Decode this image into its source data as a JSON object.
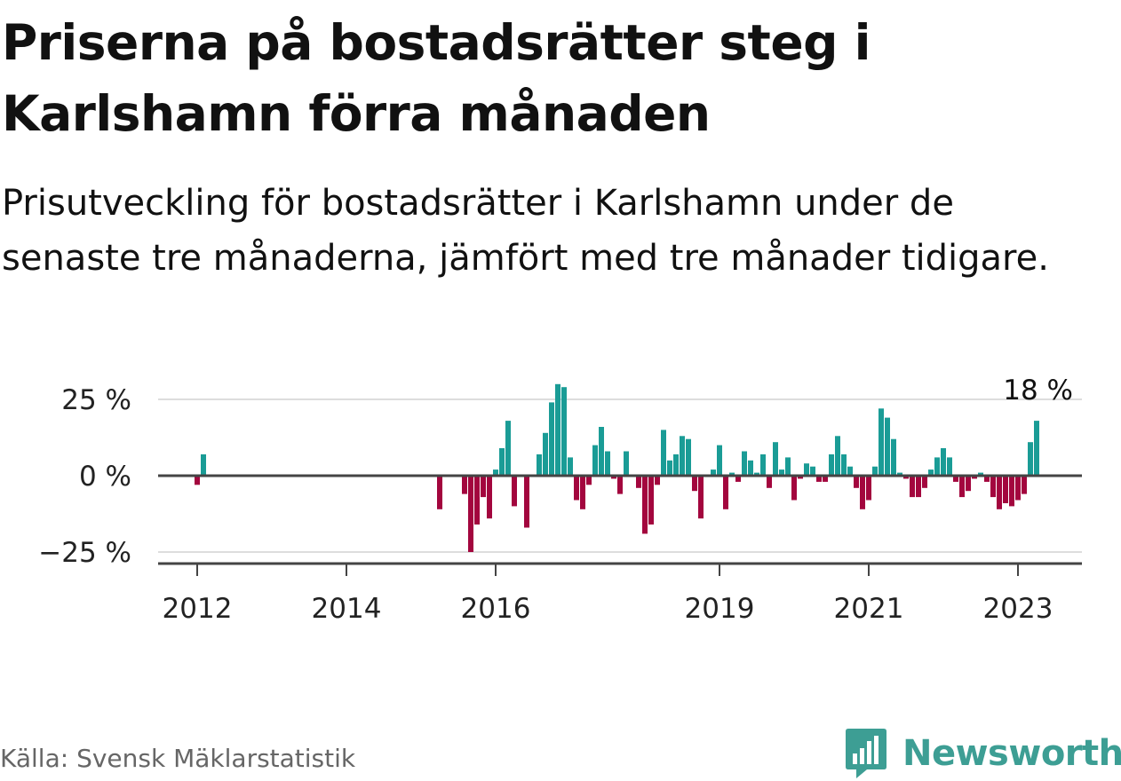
{
  "header": {
    "title": "Priserna på bostadsrätter steg i Karlshamn förra månaden",
    "subtitle": "Prisutveckling för bostadsrätter i Karlshamn under de senaste tre månaderna, jämfört med tre månader tidigare."
  },
  "footer": {
    "source": "Källa: Svensk Mäklarstatistik",
    "brand": "Newsworthy",
    "brand_icon": "bar-chart-logo-icon"
  },
  "colors": {
    "positive": "#1a9c96",
    "negative": "#a3063e",
    "axis": "#444444",
    "grid": "#dddddd",
    "brand": "#3d9e94"
  },
  "chart_data": {
    "type": "bar",
    "title": "Priserna på bostadsrätter steg i Karlshamn förra månaden",
    "ylabel": "",
    "xlabel": "",
    "ylim": [
      -28,
      30
    ],
    "y_ticks": [
      {
        "value": 25,
        "label": "25 %"
      },
      {
        "value": 0,
        "label": "0 %"
      },
      {
        "value": -25,
        "label": "−25 %"
      }
    ],
    "x_ticks": [
      {
        "date": "2012-01",
        "label": "2012"
      },
      {
        "date": "2014-01",
        "label": "2014"
      },
      {
        "date": "2016-01",
        "label": "2016"
      },
      {
        "date": "2019-01",
        "label": "2019"
      },
      {
        "date": "2021-01",
        "label": "2021"
      },
      {
        "date": "2023-01",
        "label": "2023"
      }
    ],
    "x_range": [
      "2011-08",
      "2024-01"
    ],
    "grid": true,
    "annotation": {
      "date": "2023-04",
      "value": 18,
      "label": "18 %"
    },
    "series": [
      {
        "values": [
          {
            "x": "2012-01",
            "y": -3
          },
          {
            "x": "2012-02",
            "y": 7
          },
          {
            "x": "2015-04",
            "y": -11
          },
          {
            "x": "2015-08",
            "y": -6
          },
          {
            "x": "2015-09",
            "y": -25
          },
          {
            "x": "2015-10",
            "y": -16
          },
          {
            "x": "2015-11",
            "y": -7
          },
          {
            "x": "2015-12",
            "y": -14
          },
          {
            "x": "2016-01",
            "y": 2
          },
          {
            "x": "2016-02",
            "y": 9
          },
          {
            "x": "2016-03",
            "y": 18
          },
          {
            "x": "2016-04",
            "y": -10
          },
          {
            "x": "2016-06",
            "y": -17
          },
          {
            "x": "2016-08",
            "y": 7
          },
          {
            "x": "2016-09",
            "y": 14
          },
          {
            "x": "2016-10",
            "y": 24
          },
          {
            "x": "2016-11",
            "y": 30
          },
          {
            "x": "2016-12",
            "y": 29
          },
          {
            "x": "2017-01",
            "y": 6
          },
          {
            "x": "2017-02",
            "y": -8
          },
          {
            "x": "2017-03",
            "y": -11
          },
          {
            "x": "2017-04",
            "y": -3
          },
          {
            "x": "2017-05",
            "y": 10
          },
          {
            "x": "2017-06",
            "y": 16
          },
          {
            "x": "2017-07",
            "y": 8
          },
          {
            "x": "2017-08",
            "y": -1
          },
          {
            "x": "2017-09",
            "y": -6
          },
          {
            "x": "2017-10",
            "y": 8
          },
          {
            "x": "2017-12",
            "y": -4
          },
          {
            "x": "2018-01",
            "y": -19
          },
          {
            "x": "2018-02",
            "y": -16
          },
          {
            "x": "2018-03",
            "y": -3
          },
          {
            "x": "2018-04",
            "y": 15
          },
          {
            "x": "2018-05",
            "y": 5
          },
          {
            "x": "2018-06",
            "y": 7
          },
          {
            "x": "2018-07",
            "y": 13
          },
          {
            "x": "2018-08",
            "y": 12
          },
          {
            "x": "2018-09",
            "y": -5
          },
          {
            "x": "2018-10",
            "y": -14
          },
          {
            "x": "2018-12",
            "y": 2
          },
          {
            "x": "2019-01",
            "y": 10
          },
          {
            "x": "2019-02",
            "y": -11
          },
          {
            "x": "2019-03",
            "y": 1
          },
          {
            "x": "2019-04",
            "y": -2
          },
          {
            "x": "2019-05",
            "y": 8
          },
          {
            "x": "2019-06",
            "y": 5
          },
          {
            "x": "2019-07",
            "y": 1
          },
          {
            "x": "2019-08",
            "y": 7
          },
          {
            "x": "2019-09",
            "y": -4
          },
          {
            "x": "2019-10",
            "y": 11
          },
          {
            "x": "2019-11",
            "y": 2
          },
          {
            "x": "2019-12",
            "y": 6
          },
          {
            "x": "2020-01",
            "y": -8
          },
          {
            "x": "2020-02",
            "y": -1
          },
          {
            "x": "2020-03",
            "y": 4
          },
          {
            "x": "2020-04",
            "y": 3
          },
          {
            "x": "2020-05",
            "y": -2
          },
          {
            "x": "2020-06",
            "y": -2
          },
          {
            "x": "2020-07",
            "y": 7
          },
          {
            "x": "2020-08",
            "y": 13
          },
          {
            "x": "2020-09",
            "y": 7
          },
          {
            "x": "2020-10",
            "y": 3
          },
          {
            "x": "2020-11",
            "y": -4
          },
          {
            "x": "2020-12",
            "y": -11
          },
          {
            "x": "2021-01",
            "y": -8
          },
          {
            "x": "2021-02",
            "y": 3
          },
          {
            "x": "2021-03",
            "y": 22
          },
          {
            "x": "2021-04",
            "y": 19
          },
          {
            "x": "2021-05",
            "y": 12
          },
          {
            "x": "2021-06",
            "y": 1
          },
          {
            "x": "2021-07",
            "y": -1
          },
          {
            "x": "2021-08",
            "y": -7
          },
          {
            "x": "2021-09",
            "y": -7
          },
          {
            "x": "2021-10",
            "y": -4
          },
          {
            "x": "2021-11",
            "y": 2
          },
          {
            "x": "2021-12",
            "y": 6
          },
          {
            "x": "2022-01",
            "y": 9
          },
          {
            "x": "2022-02",
            "y": 6
          },
          {
            "x": "2022-03",
            "y": -2
          },
          {
            "x": "2022-04",
            "y": -7
          },
          {
            "x": "2022-05",
            "y": -5
          },
          {
            "x": "2022-06",
            "y": -1
          },
          {
            "x": "2022-07",
            "y": 1
          },
          {
            "x": "2022-08",
            "y": -2
          },
          {
            "x": "2022-09",
            "y": -7
          },
          {
            "x": "2022-10",
            "y": -11
          },
          {
            "x": "2022-11",
            "y": -9
          },
          {
            "x": "2022-12",
            "y": -10
          },
          {
            "x": "2023-01",
            "y": -8
          },
          {
            "x": "2023-02",
            "y": -6
          },
          {
            "x": "2023-03",
            "y": 11
          },
          {
            "x": "2023-04",
            "y": 18
          }
        ]
      }
    ]
  }
}
